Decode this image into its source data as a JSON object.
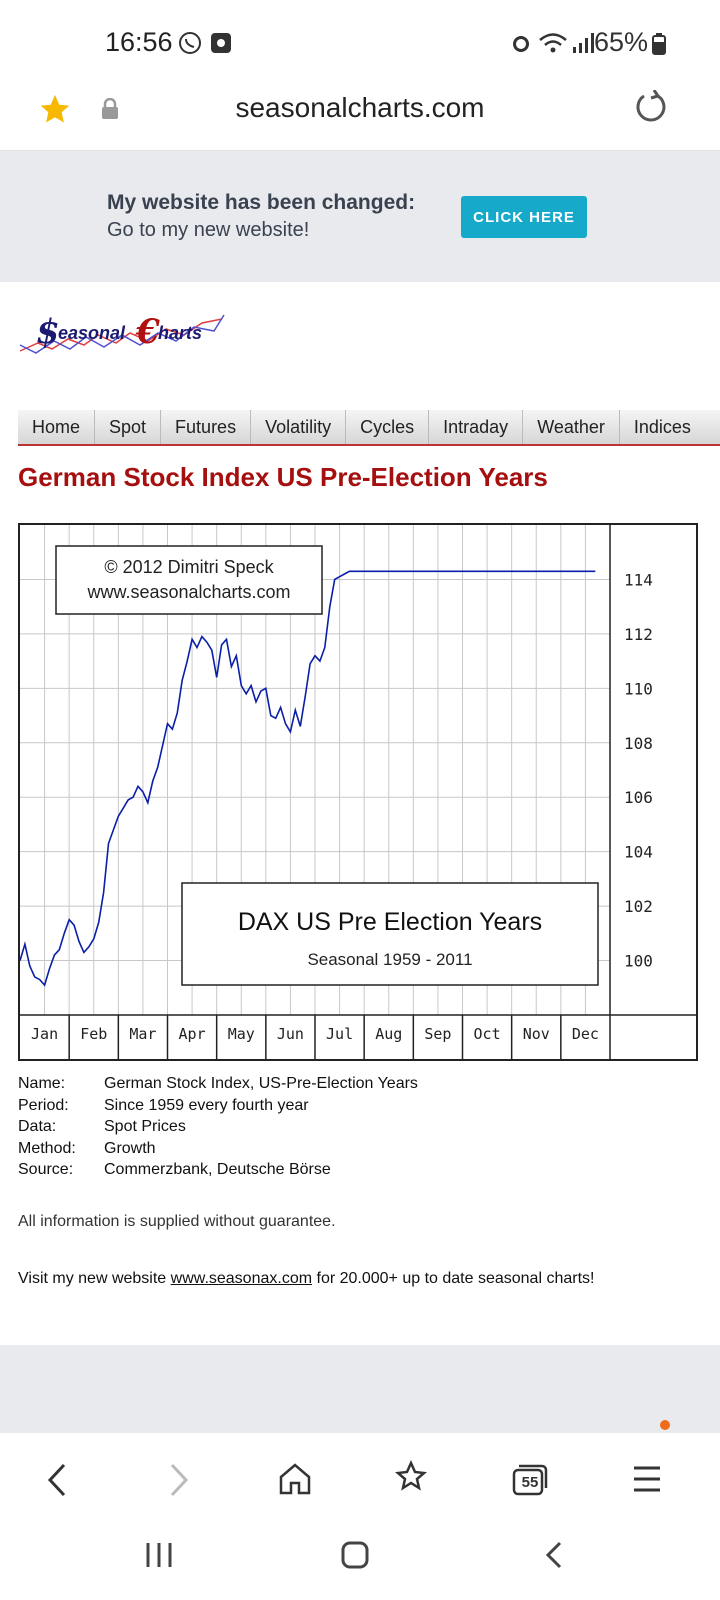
{
  "status": {
    "time": "16:56",
    "battery": "65%"
  },
  "browser": {
    "url": "seasonalcharts.com",
    "tabs_count": "55"
  },
  "banner": {
    "line1": "My website has been changed:",
    "line2": "Go to my new website!",
    "button": "CLICK HERE"
  },
  "logo": {
    "text": "Seasonal Charts"
  },
  "nav": {
    "items": [
      "Home",
      "Spot",
      "Futures",
      "Volatility",
      "Cycles",
      "Intraday",
      "Weather",
      "Indices"
    ]
  },
  "page": {
    "title": "German Stock Index US Pre-Election Years"
  },
  "chart_data": {
    "type": "line",
    "copyright_line1": "© 2012  Dimitri Speck",
    "copyright_line2": "www.seasonalcharts.com",
    "title": "DAX US Pre Election Years",
    "subtitle": "Seasonal 1959 - 2011",
    "x_tick_labels": [
      "Jan",
      "Feb",
      "Mar",
      "Apr",
      "May",
      "Jun",
      "Jul",
      "Aug",
      "Sep",
      "Oct",
      "Nov",
      "Dec"
    ],
    "y_tick_labels": [
      "114",
      "112",
      "110",
      "108",
      "106",
      "104",
      "102",
      "100"
    ],
    "ylim": [
      98,
      116
    ],
    "grid": true,
    "line_color": "#0a1fa8",
    "series": [
      {
        "x": [
          0,
          0.1,
          0.2,
          0.3,
          0.4,
          0.5,
          0.6,
          0.7,
          0.8,
          0.9,
          1.0,
          1.1,
          1.2,
          1.3,
          1.4,
          1.5,
          1.6,
          1.7,
          1.8,
          1.9,
          2.0,
          2.1,
          2.2,
          2.3,
          2.4,
          2.5,
          2.6,
          2.7,
          2.8,
          2.9,
          3.0,
          3.1,
          3.2,
          3.3,
          3.4,
          3.5,
          3.6,
          3.7,
          3.8,
          3.9,
          4.0,
          4.1,
          4.2,
          4.3,
          4.4,
          4.5,
          4.6,
          4.7,
          4.8,
          4.9,
          5.0,
          5.1,
          5.2,
          5.3,
          5.4,
          5.5,
          5.6,
          5.7,
          5.8,
          5.9,
          6.0,
          6.1,
          6.2,
          6.3,
          6.4,
          6.5,
          6.6,
          6.7,
          6.8,
          6.9,
          7.0,
          7.1,
          7.2,
          7.3,
          7.4,
          7.5,
          7.6,
          7.7,
          7.8,
          7.9,
          8.0,
          8.1,
          8.2,
          8.3,
          8.4,
          8.5,
          8.6,
          8.7,
          8.8,
          8.9,
          9.0,
          9.1,
          9.2,
          9.3,
          9.4,
          9.5,
          9.6,
          9.7,
          9.8,
          9.9,
          10.0,
          10.1,
          10.2,
          10.3,
          10.4,
          10.5,
          10.6,
          10.7,
          10.8,
          10.9,
          11.0,
          11.1,
          11.2,
          11.3,
          11.4,
          11.5,
          11.6,
          11.7,
          11.8,
          11.9,
          12.0
        ],
        "y": [
          100.0,
          100.6,
          99.8,
          99.4,
          99.3,
          99.1,
          99.7,
          100.2,
          100.4,
          101.0,
          101.5,
          101.3,
          100.7,
          100.3,
          100.5,
          100.8,
          101.4,
          102.5,
          104.3,
          104.8,
          105.3,
          105.6,
          105.9,
          106.0,
          106.4,
          106.2,
          105.8,
          106.6,
          107.1,
          107.9,
          108.7,
          108.5,
          109.1,
          110.3,
          111.0,
          111.8,
          111.5,
          111.9,
          111.7,
          111.4,
          110.4,
          111.6,
          111.8,
          110.8,
          111.2,
          110.1,
          109.8,
          110.1,
          109.5,
          109.9,
          110.0,
          109.0,
          108.9,
          109.3,
          108.7,
          108.4,
          109.2,
          108.6,
          109.7,
          110.9,
          111.2,
          111.0,
          111.5,
          113.0,
          114.0,
          114.1,
          114.2,
          114.3,
          114.3,
          114.3,
          114.3,
          114.3,
          114.3,
          114.3,
          114.3,
          114.3,
          114.3,
          114.3,
          114.3,
          114.3,
          114.3,
          114.3,
          114.3,
          114.3,
          114.3,
          114.3,
          114.3,
          114.3,
          114.3,
          114.3,
          114.3,
          114.3,
          114.3,
          114.3,
          114.3,
          114.3,
          114.3,
          114.3,
          114.3,
          114.3,
          114.3,
          114.3,
          114.3,
          114.3,
          114.3,
          114.3,
          114.3,
          114.3,
          114.3,
          114.3,
          114.3,
          114.3,
          114.3,
          114.3,
          114.3,
          114.3,
          114.3,
          114.3,
          114.3,
          114.3,
          114.3
        ]
      }
    ]
  },
  "info": {
    "rows": [
      {
        "k": "Name:",
        "v": "German Stock Index, US-Pre-Election Years"
      },
      {
        "k": "Period:",
        "v": "Since 1959 every fourth year"
      },
      {
        "k": "Data:",
        "v": "Spot Prices"
      },
      {
        "k": "Method:",
        "v": "Growth"
      },
      {
        "k": "Source:",
        "v": "Commerzbank, Deutsche Börse"
      }
    ],
    "disclaimer": "All information is supplied without guarantee.",
    "visit_pre": "Visit my new website ",
    "visit_link": "www.seasonax.com",
    "visit_post": " for 20.000+ up to date seasonal charts!"
  }
}
